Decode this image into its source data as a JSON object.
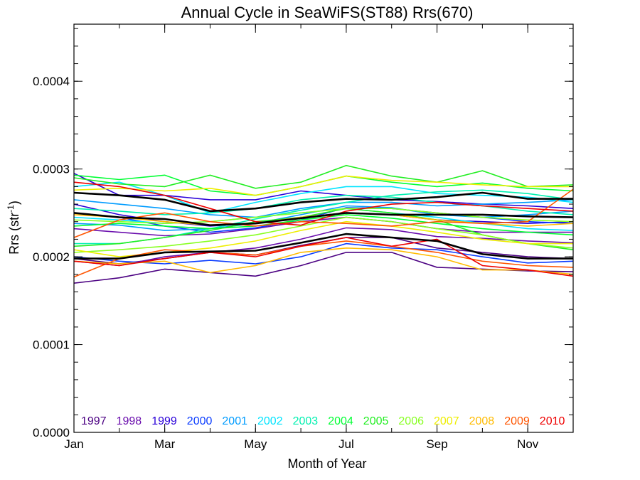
{
  "chart_data": {
    "type": "line",
    "title": "Annual Cycle in SeaWiFS(ST88) Rrs(670)",
    "xlabel": "Month of Year",
    "ylabel_main": "Rrs (str",
    "ylabel_sup": "-1",
    "ylabel_close": ")",
    "xlim": [
      1,
      12
    ],
    "ylim": [
      0.0,
      0.000465
    ],
    "x_ticks": [
      {
        "value": 1,
        "label": "Jan"
      },
      {
        "value": 3,
        "label": "Mar"
      },
      {
        "value": 5,
        "label": "May"
      },
      {
        "value": 7,
        "label": "Jul"
      },
      {
        "value": 9,
        "label": "Sep"
      },
      {
        "value": 11,
        "label": "Nov"
      }
    ],
    "y_ticks": [
      {
        "value": 0.0,
        "label": "0.0000"
      },
      {
        "value": 0.0001,
        "label": "0.0001"
      },
      {
        "value": 0.0002,
        "label": "0.0002"
      },
      {
        "value": 0.0003,
        "label": "0.0003"
      },
      {
        "value": 0.0004,
        "label": "0.0004"
      }
    ],
    "grid": false,
    "legend_position": "bottom",
    "months": [
      1,
      2,
      3,
      4,
      5,
      6,
      7,
      8,
      9,
      10,
      11,
      12
    ],
    "series": [
      {
        "name": "1997",
        "color": "#4b0082",
        "lines": [
          [
            0.00017,
            0.000176,
            0.000186,
            0.000182,
            0.000178,
            0.00019,
            0.000205,
            0.000205,
            0.000188,
            0.000186,
            0.000184,
            0.000183
          ],
          [
            0.000198,
            0.000192,
            0.000198,
            0.000205,
            0.000202,
            0.000213,
            0.000222,
            0.000222,
            0.00021,
            0.000205,
            0.0002,
            0.000198
          ]
        ]
      },
      {
        "name": "1998",
        "color": "#6a0dad",
        "lines": [
          [
            0.000232,
            0.000228,
            0.000224,
            0.000226,
            0.000232,
            0.00024,
            0.000245,
            0.00024,
            0.000232,
            0.000228,
            0.000228,
            0.000228
          ],
          [
            0.000195,
            0.00019,
            0.0002,
            0.000205,
            0.00021,
            0.00022,
            0.000233,
            0.000231,
            0.000223,
            0.000221,
            0.000218,
            0.000216
          ]
        ]
      },
      {
        "name": "1999",
        "color": "#2a00d8",
        "lines": [
          [
            0.000295,
            0.00027,
            0.00027,
            0.000265,
            0.000265,
            0.000275,
            0.00027,
            0.000265,
            0.000263,
            0.00026,
            0.000258,
            0.000255
          ],
          [
            0.00026,
            0.000248,
            0.00024,
            0.000235,
            0.000238,
            0.000245,
            0.00025,
            0.000248,
            0.000242,
            0.00024,
            0.000238,
            0.00024
          ]
        ]
      },
      {
        "name": "2000",
        "color": "#0a3cff",
        "lines": [
          [
            0.00025,
            0.000245,
            0.000235,
            0.000228,
            0.000233,
            0.000242,
            0.000256,
            0.000255,
            0.00025,
            0.000245,
            0.00024,
            0.000238
          ],
          [
            0.0002,
            0.000195,
            0.000192,
            0.000196,
            0.000192,
            0.0002,
            0.000215,
            0.00021,
            0.000208,
            0.0002,
            0.000193,
            0.000195
          ]
        ]
      },
      {
        "name": "2001",
        "color": "#009cff",
        "lines": [
          [
            0.000265,
            0.00026,
            0.000255,
            0.000248,
            0.000245,
            0.000255,
            0.000262,
            0.000262,
            0.000258,
            0.00026,
            0.000262,
            0.000265
          ],
          [
            0.000238,
            0.000236,
            0.00023,
            0.000232,
            0.000238,
            0.000248,
            0.000258,
            0.000256,
            0.000248,
            0.000245,
            0.000248,
            0.000252
          ]
        ]
      },
      {
        "name": "2002",
        "color": "#00e4ff",
        "lines": [
          [
            0.00028,
            0.000285,
            0.00027,
            0.00025,
            0.000262,
            0.000272,
            0.00028,
            0.00028,
            0.000272,
            0.00027,
            0.000268,
            0.000262
          ],
          [
            0.000245,
            0.000242,
            0.000238,
            0.00024,
            0.000245,
            0.00025,
            0.000255,
            0.00025,
            0.000245,
            0.000238,
            0.000232,
            0.00023
          ]
        ]
      },
      {
        "name": "2003",
        "color": "#00f0b0",
        "lines": [
          [
            0.000215,
            0.000215,
            0.000222,
            0.000232,
            0.000243,
            0.000253,
            0.000262,
            0.00027,
            0.000274,
            0.000276,
            0.000272,
            0.000265
          ],
          [
            0.000255,
            0.000252,
            0.000248,
            0.00025,
            0.000255,
            0.000265,
            0.00027,
            0.000268,
            0.000262,
            0.000258,
            0.000252,
            0.000248
          ]
        ]
      },
      {
        "name": "2004",
        "color": "#00ff33",
        "lines": [
          [
            0.000293,
            0.000288,
            0.000293,
            0.000275,
            0.00027,
            0.00028,
            0.000292,
            0.000285,
            0.00028,
            0.000284,
            0.000278,
            0.000275
          ],
          [
            0.000235,
            0.000238,
            0.000235,
            0.000232,
            0.000235,
            0.000242,
            0.000248,
            0.000244,
            0.000238,
            0.000232,
            0.000228,
            0.000225
          ]
        ]
      },
      {
        "name": "2005",
        "color": "#22ee22",
        "lines": [
          [
            0.00029,
            0.000283,
            0.00028,
            0.000293,
            0.000278,
            0.000285,
            0.000304,
            0.000292,
            0.000285,
            0.000298,
            0.00028,
            0.000282
          ],
          [
            0.000212,
            0.000215,
            0.000222,
            0.00023,
            0.00024,
            0.000245,
            0.000255,
            0.00025,
            0.000242,
            0.000225,
            0.000215,
            0.000208
          ]
        ]
      },
      {
        "name": "2006",
        "color": "#88ff22",
        "lines": [
          [
            0.000242,
            0.00024,
            0.000238,
            0.00024,
            0.000245,
            0.00025,
            0.000255,
            0.000255,
            0.00025,
            0.000245,
            0.000242,
            0.00024
          ],
          [
            0.000205,
            0.000208,
            0.000212,
            0.000218,
            0.000225,
            0.000235,
            0.000245,
            0.00024,
            0.000232,
            0.000225,
            0.000215,
            0.00021
          ]
        ]
      },
      {
        "name": "2007",
        "color": "#eeee00",
        "lines": [
          [
            0.000276,
            0.000278,
            0.000275,
            0.000278,
            0.00027,
            0.00028,
            0.000292,
            0.000287,
            0.000285,
            0.000282,
            0.00028,
            0.00028
          ],
          [
            0.000208,
            0.0002,
            0.000205,
            0.00021,
            0.000218,
            0.00023,
            0.00024,
            0.000235,
            0.000228,
            0.00022,
            0.000215,
            0.000215
          ]
        ]
      },
      {
        "name": "2008",
        "color": "#ffbb00",
        "lines": [
          [
            0.000195,
            0.000192,
            0.000195,
            0.000182,
            0.00019,
            0.000205,
            0.00021,
            0.000208,
            0.0002,
            0.000185,
            0.000185,
            0.00018
          ],
          [
            0.000248,
            0.000245,
            0.00024,
            0.000236,
            0.000238,
            0.000245,
            0.00025,
            0.000248,
            0.000242,
            0.000238,
            0.000235,
            0.000238
          ]
        ]
      },
      {
        "name": "2009",
        "color": "#ff5500",
        "lines": [
          [
            0.000177,
            0.000198,
            0.000208,
            0.000205,
            0.000202,
            0.000212,
            0.000218,
            0.000212,
            0.000205,
            0.000195,
            0.00019,
            0.000188
          ],
          [
            0.000222,
            0.000242,
            0.00025,
            0.00024,
            0.000235,
            0.00024,
            0.000238,
            0.000235,
            0.00024,
            0.000238,
            0.00024,
            0.000277
          ]
        ]
      },
      {
        "name": "2010",
        "color": "#ee0000",
        "lines": [
          [
            0.000285,
            0.00028,
            0.00027,
            0.000255,
            0.00024,
            0.000236,
            0.000252,
            0.00026,
            0.000262,
            0.000258,
            0.000255,
            0.000252
          ],
          [
            0.000195,
            0.00019,
            0.000198,
            0.000205,
            0.0002,
            0.000212,
            0.000222,
            0.000212,
            0.00022,
            0.00019,
            0.000185,
            0.000178
          ]
        ]
      }
    ],
    "mean_lines": [
      {
        "role": "upper",
        "color": "#000000",
        "values": [
          0.000273,
          0.00027,
          0.000265,
          0.000252,
          0.000255,
          0.000262,
          0.000266,
          0.000265,
          0.000268,
          0.000273,
          0.000266,
          0.000266
        ]
      },
      {
        "role": "mean",
        "color": "#000000",
        "values": [
          0.00025,
          0.000245,
          0.000243,
          0.000236,
          0.000238,
          0.000244,
          0.00025,
          0.000248,
          0.000248,
          0.000248,
          0.000246,
          0.000245
        ]
      },
      {
        "role": "lower",
        "color": "#000000",
        "values": [
          0.000198,
          0.000198,
          0.000205,
          0.000206,
          0.000207,
          0.000216,
          0.000226,
          0.000222,
          0.000218,
          0.000203,
          0.000198,
          0.000198
        ]
      }
    ]
  }
}
